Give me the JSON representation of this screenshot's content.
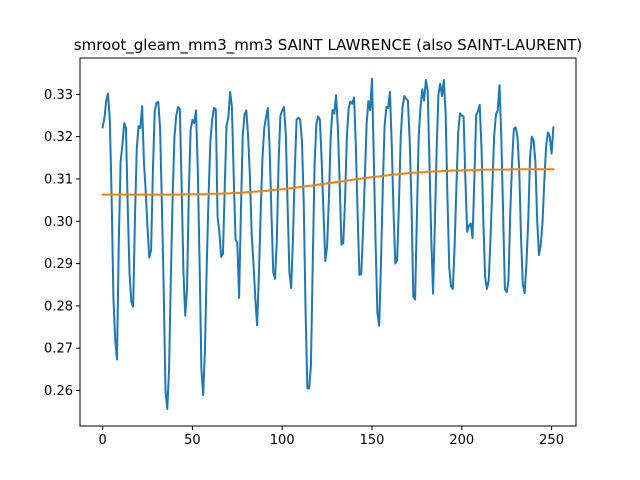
{
  "chart_data": {
    "type": "line",
    "title": "smroot_gleam_mm3_mm3 SAINT LAWRENCE (also SAINT-LAURENT)",
    "xlabel": "",
    "ylabel": "",
    "xlim": [
      -12.6,
      263.6
    ],
    "ylim": [
      0.2516,
      0.3386
    ],
    "xticks": [
      0,
      50,
      100,
      150,
      200,
      250
    ],
    "yticks": [
      0.26,
      0.27,
      0.28,
      0.29,
      0.3,
      0.31,
      0.32,
      0.33
    ],
    "ytick_labels": [
      "0.26",
      "0.27",
      "0.28",
      "0.29",
      "0.30",
      "0.31",
      "0.32",
      "0.33"
    ],
    "grid": false,
    "legend": "none",
    "colors": {
      "series1": "#1f77b4",
      "series2": "#ff7f0e"
    },
    "series": [
      {
        "values": [
          0.3222,
          0.3244,
          0.3285,
          0.3302,
          0.324,
          0.306,
          0.282,
          0.272,
          0.2673,
          0.295,
          0.314,
          0.318,
          0.3232,
          0.322,
          0.303,
          0.2875,
          0.2809,
          0.2798,
          0.3007,
          0.317,
          0.3225,
          0.322,
          0.3272,
          0.314,
          0.307,
          0.2985,
          0.2914,
          0.2932,
          0.312,
          0.326,
          0.328,
          0.3282,
          0.322,
          0.304,
          0.284,
          0.26,
          0.2556,
          0.265,
          0.287,
          0.306,
          0.32,
          0.325,
          0.327,
          0.3265,
          0.308,
          0.288,
          0.2777,
          0.284,
          0.307,
          0.3216,
          0.324,
          0.3232,
          0.3262,
          0.312,
          0.29,
          0.265,
          0.2589,
          0.27,
          0.29,
          0.306,
          0.319,
          0.324,
          0.3268,
          0.3265,
          0.301,
          0.2975,
          0.2916,
          0.2923,
          0.308,
          0.3226,
          0.3245,
          0.3306,
          0.327,
          0.3104,
          0.2958,
          0.2949,
          0.2819,
          0.3024,
          0.32,
          0.3252,
          0.3262,
          0.3202,
          0.3108,
          0.297,
          0.29,
          0.282,
          0.2754,
          0.287,
          0.302,
          0.3148,
          0.322,
          0.3246,
          0.3268,
          0.3172,
          0.302,
          0.288,
          0.2864,
          0.2955,
          0.3142,
          0.325,
          0.3262,
          0.327,
          0.3205,
          0.304,
          0.288,
          0.2842,
          0.296,
          0.312,
          0.324,
          0.3245,
          0.324,
          0.319,
          0.304,
          0.279,
          0.2605,
          0.2605,
          0.266,
          0.29,
          0.313,
          0.323,
          0.3248,
          0.324,
          0.314,
          0.302,
          0.2906,
          0.294,
          0.3055,
          0.32,
          0.3263,
          0.3255,
          0.3298,
          0.322,
          0.309,
          0.2945,
          0.2948,
          0.305,
          0.32,
          0.3268,
          0.3283,
          0.3278,
          0.3293,
          0.318,
          0.3016,
          0.2873,
          0.2875,
          0.2975,
          0.31,
          0.323,
          0.3284,
          0.3263,
          0.3337,
          0.315,
          0.295,
          0.2784,
          0.2753,
          0.29,
          0.308,
          0.3225,
          0.327,
          0.3268,
          0.3306,
          0.318,
          0.302,
          0.29,
          0.2908,
          0.304,
          0.32,
          0.327,
          0.3296,
          0.329,
          0.3285,
          0.319,
          0.304,
          0.2822,
          0.2815,
          0.301,
          0.32,
          0.3268,
          0.3312,
          0.3285,
          0.3334,
          0.331,
          0.314,
          0.296,
          0.2829,
          0.2992,
          0.317,
          0.33,
          0.3325,
          0.3296,
          0.3334,
          0.3256,
          0.306,
          0.2891,
          0.2846,
          0.284,
          0.294,
          0.308,
          0.321,
          0.3255,
          0.325,
          0.3248,
          0.31,
          0.2975,
          0.299,
          0.2995,
          0.296,
          0.31,
          0.325,
          0.326,
          0.3275,
          0.317,
          0.3,
          0.2868,
          0.284,
          0.286,
          0.296,
          0.308,
          0.32,
          0.3252,
          0.3262,
          0.3322,
          0.32,
          0.302,
          0.284,
          0.2832,
          0.286,
          0.302,
          0.314,
          0.3219,
          0.3222,
          0.32,
          0.312,
          0.296,
          0.285,
          0.283,
          0.29,
          0.3,
          0.315,
          0.32,
          0.319,
          0.314,
          0.3,
          0.292,
          0.2945,
          0.3,
          0.31,
          0.318,
          0.321,
          0.32,
          0.316,
          0.3222
        ]
      },
      {
        "values": [
          0.3063,
          0.3063,
          0.3063,
          0.3063,
          0.3063,
          0.3063,
          0.3063,
          0.3063,
          0.3063,
          0.3063,
          0.3063,
          0.3063,
          0.3063,
          0.3063,
          0.3063,
          0.3063,
          0.3063,
          0.3063,
          0.3063,
          0.3063,
          0.3063,
          0.3063,
          0.3063,
          0.3063,
          0.3063,
          0.3063,
          0.3063,
          0.3063,
          0.3063,
          0.3063,
          0.3063,
          0.3063,
          0.3063,
          0.3063,
          0.3063,
          0.3063,
          0.3063,
          0.3063,
          0.3063,
          0.3063,
          0.3063,
          0.3063,
          0.3063,
          0.3063,
          0.3063,
          0.3063,
          0.3064,
          0.3064,
          0.3064,
          0.3064,
          0.3064,
          0.3064,
          0.3064,
          0.3064,
          0.3064,
          0.3064,
          0.3064,
          0.3064,
          0.3064,
          0.3064,
          0.3065,
          0.3065,
          0.3065,
          0.3065,
          0.3065,
          0.3065,
          0.3065,
          0.3066,
          0.3066,
          0.3066,
          0.3066,
          0.3066,
          0.3067,
          0.3067,
          0.3067,
          0.3067,
          0.3067,
          0.3068,
          0.3068,
          0.3068,
          0.3069,
          0.3069,
          0.3069,
          0.3069,
          0.307,
          0.307,
          0.307,
          0.3071,
          0.3071,
          0.3071,
          0.3072,
          0.3072,
          0.3072,
          0.3073,
          0.3073,
          0.3074,
          0.3074,
          0.3075,
          0.3075,
          0.3075,
          0.3076,
          0.3076,
          0.3077,
          0.3077,
          0.3078,
          0.3078,
          0.3079,
          0.3079,
          0.308,
          0.308,
          0.3081,
          0.3081,
          0.3082,
          0.3083,
          0.3083,
          0.3084,
          0.3084,
          0.3085,
          0.3085,
          0.3086,
          0.3087,
          0.3087,
          0.3088,
          0.3088,
          0.3089,
          0.309,
          0.309,
          0.3091,
          0.3091,
          0.3092,
          0.3093,
          0.3093,
          0.3094,
          0.3094,
          0.3095,
          0.3096,
          0.3096,
          0.3097,
          0.3097,
          0.3098,
          0.3099,
          0.3099,
          0.31,
          0.31,
          0.3101,
          0.3102,
          0.3102,
          0.3103,
          0.3103,
          0.3104,
          0.3104,
          0.3105,
          0.3105,
          0.3106,
          0.3106,
          0.3107,
          0.3107,
          0.3108,
          0.3108,
          0.3109,
          0.3109,
          0.311,
          0.311,
          0.3111,
          0.3111,
          0.3112,
          0.3112,
          0.3112,
          0.3113,
          0.3113,
          0.3114,
          0.3114,
          0.3114,
          0.3115,
          0.3115,
          0.3115,
          0.3116,
          0.3116,
          0.3116,
          0.3116,
          0.3117,
          0.3117,
          0.3117,
          0.3117,
          0.3118,
          0.3118,
          0.3118,
          0.3118,
          0.3118,
          0.3119,
          0.3119,
          0.3119,
          0.3119,
          0.3119,
          0.312,
          0.312,
          0.312,
          0.312,
          0.312,
          0.312,
          0.312,
          0.3121,
          0.3121,
          0.3121,
          0.3121,
          0.3121,
          0.3121,
          0.3121,
          0.3121,
          0.3121,
          0.3122,
          0.3122,
          0.3122,
          0.3122,
          0.3122,
          0.3122,
          0.3122,
          0.3122,
          0.3122,
          0.3122,
          0.3122,
          0.3122,
          0.3122,
          0.3122,
          0.3122,
          0.3122,
          0.3122,
          0.3123,
          0.3123,
          0.3123,
          0.3123,
          0.3123,
          0.3123,
          0.3123,
          0.3123,
          0.3123,
          0.3123,
          0.3123,
          0.3123,
          0.3123,
          0.3123,
          0.3123,
          0.3123,
          0.3123,
          0.3123,
          0.3123,
          0.3123,
          0.3123,
          0.3123,
          0.3123,
          0.3123,
          0.3123
        ]
      }
    ]
  }
}
